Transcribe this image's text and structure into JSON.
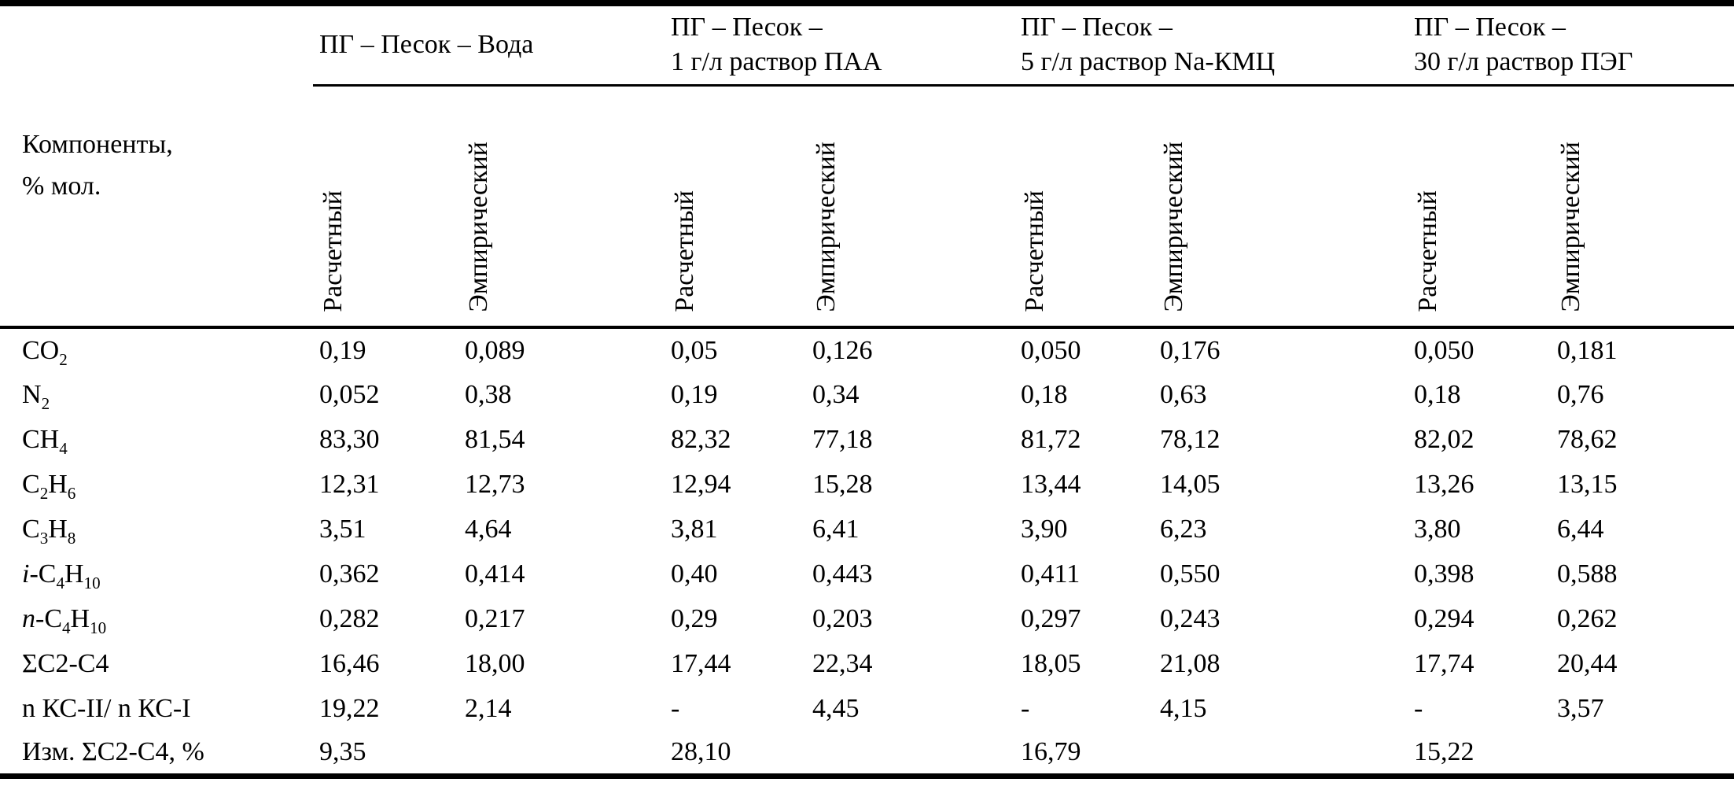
{
  "table": {
    "row_header": "Компоненты,\n% мол.",
    "groups": [
      {
        "label": "ПГ – Песок – Вода"
      },
      {
        "label": "ПГ – Песок –\n1 г/л раствор ПАА"
      },
      {
        "label": "ПГ – Песок –\n5 г/л раствор Na-КМЦ"
      },
      {
        "label": "ПГ – Песок –\n30 г/л раствор ПЭГ"
      }
    ],
    "subcolumns": [
      "Расчетный",
      "Эмпирический"
    ],
    "rows": [
      {
        "label": "CO~2~",
        "values": [
          "0,19",
          "0,089",
          "0,05",
          "0,126",
          "0,050",
          "0,176",
          "0,050",
          "0,181"
        ]
      },
      {
        "label": "N~2~",
        "values": [
          "0,052",
          "0,38",
          "0,19",
          "0,34",
          "0,18",
          "0,63",
          "0,18",
          "0,76"
        ]
      },
      {
        "label": "CH~4~",
        "values": [
          "83,30",
          "81,54",
          "82,32",
          "77,18",
          "81,72",
          "78,12",
          "82,02",
          "78,62"
        ]
      },
      {
        "label": "C~2~H~6~",
        "values": [
          "12,31",
          "12,73",
          "12,94",
          "15,28",
          "13,44",
          "14,05",
          "13,26",
          "13,15"
        ]
      },
      {
        "label": "C~3~H~8~",
        "values": [
          "3,51",
          "4,64",
          "3,81",
          "6,41",
          "3,90",
          "6,23",
          "3,80",
          "6,44"
        ]
      },
      {
        "label": "*i*-C~4~H~10~",
        "values": [
          "0,362",
          "0,414",
          "0,40",
          "0,443",
          "0,411",
          "0,550",
          "0,398",
          "0,588"
        ]
      },
      {
        "label": "*n*-C~4~H~10~",
        "values": [
          "0,282",
          "0,217",
          "0,29",
          "0,203",
          "0,297",
          "0,243",
          "0,294",
          "0,262"
        ]
      },
      {
        "label": "ΣC2-C4",
        "values": [
          "16,46",
          "18,00",
          "17,44",
          "22,34",
          "18,05",
          "21,08",
          "17,74",
          "20,44"
        ]
      },
      {
        "label": "n КС-II/ n КС-I",
        "values": [
          "19,22",
          "2,14",
          "-",
          "4,45",
          "-",
          "4,15",
          "-",
          "3,57"
        ]
      },
      {
        "label": "Изм. ΣC2-C4, %",
        "values": [
          "9,35",
          "",
          "28,10",
          "",
          "16,79",
          "",
          "15,22",
          ""
        ]
      }
    ],
    "colors": {
      "text": "#000000",
      "background": "#ffffff",
      "rule": "#000000"
    }
  }
}
